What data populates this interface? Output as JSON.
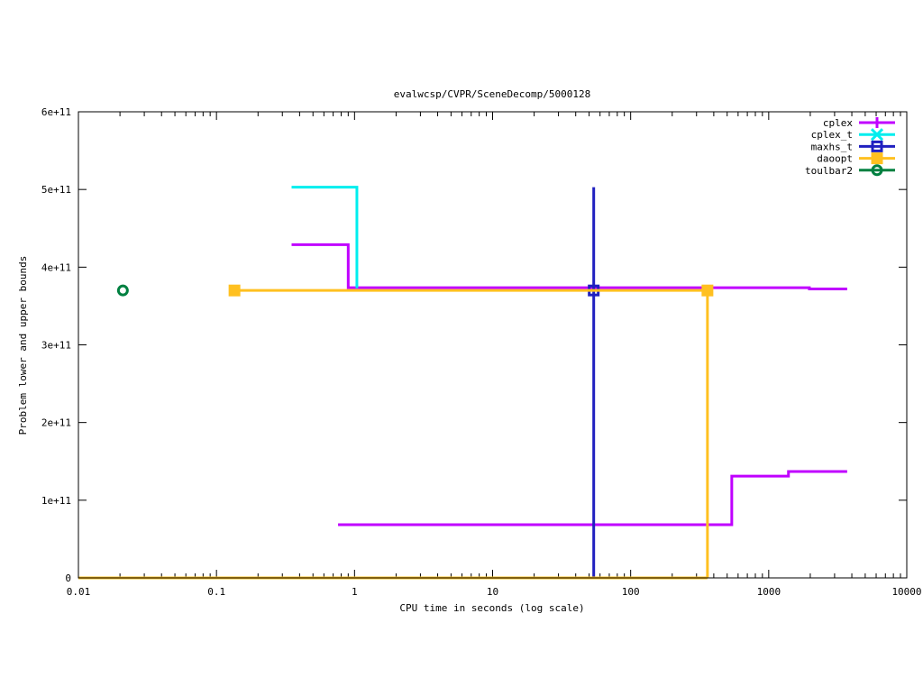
{
  "chart_data": {
    "type": "line",
    "title": "evalwcsp/CVPR/SceneDecomp/5000128",
    "xlabel": "CPU time in seconds (log scale)",
    "ylabel": "Problem lower and upper bounds",
    "xscale": "log",
    "xlim": [
      0.01,
      10000
    ],
    "ylim": [
      0,
      600000000000
    ],
    "x_ticks": [
      0.01,
      0.1,
      1,
      10,
      100,
      1000,
      10000
    ],
    "x_tick_labels": [
      "0.01",
      "0.1",
      "1",
      "10",
      "100",
      "1000",
      "10000"
    ],
    "y_ticks": [
      0,
      100000000000,
      200000000000,
      300000000000,
      400000000000,
      500000000000,
      600000000000
    ],
    "y_tick_labels": [
      "0",
      "1e+11",
      "2e+11",
      "3e+11",
      "4e+11",
      "5e+11",
      "6e+11"
    ],
    "grid": false,
    "legend_position": "top-right",
    "series": [
      {
        "name": "cplex",
        "color": "#c000ff",
        "marker": "plus",
        "lines": [
          [
            [
              0.35,
              429000000000.0
            ],
            [
              0.9,
              429000000000.0
            ],
            [
              0.9,
              373500000000.0
            ],
            [
              1970,
              373500000000.0
            ],
            [
              1970,
              372000000000.0
            ],
            [
              3700,
              372000000000.0
            ]
          ],
          [
            [
              0.76,
              68500000000.0
            ],
            [
              540,
              68500000000.0
            ],
            [
              540,
              131000000000.0
            ],
            [
              1390,
              131000000000.0
            ],
            [
              1390,
              137000000000.0
            ],
            [
              3700,
              137000000000.0
            ]
          ]
        ],
        "points": []
      },
      {
        "name": "cplex_t",
        "color": "#00eeee",
        "marker": "cross",
        "lines": [
          [
            [
              0.35,
              503000000000.0
            ],
            [
              1.04,
              503000000000.0
            ],
            [
              1.04,
              373000000000.0
            ]
          ]
        ],
        "points": []
      },
      {
        "name": "maxhs_t",
        "color": "#2020c0",
        "marker": "square-open",
        "lines": [
          [
            [
              54,
              0
            ],
            [
              54,
              503000000000.0
            ]
          ]
        ],
        "points": [
          [
            54,
            370000000000.0
          ]
        ]
      },
      {
        "name": "daoopt",
        "color": "#ffc020",
        "marker": "square-filled",
        "lines": [
          [
            [
              0.135,
              370000000000.0
            ],
            [
              360,
              370000000000.0
            ],
            [
              360,
              0
            ]
          ],
          [
            [
              0.01,
              0
            ],
            [
              360,
              0
            ]
          ]
        ],
        "points": [
          [
            0.135,
            370000000000.0
          ],
          [
            360,
            370000000000.0
          ]
        ]
      },
      {
        "name": "toulbar2",
        "color": "#008040",
        "marker": "circle",
        "lines": [],
        "points": [
          [
            0.021,
            370000000000.0
          ]
        ]
      }
    ]
  }
}
